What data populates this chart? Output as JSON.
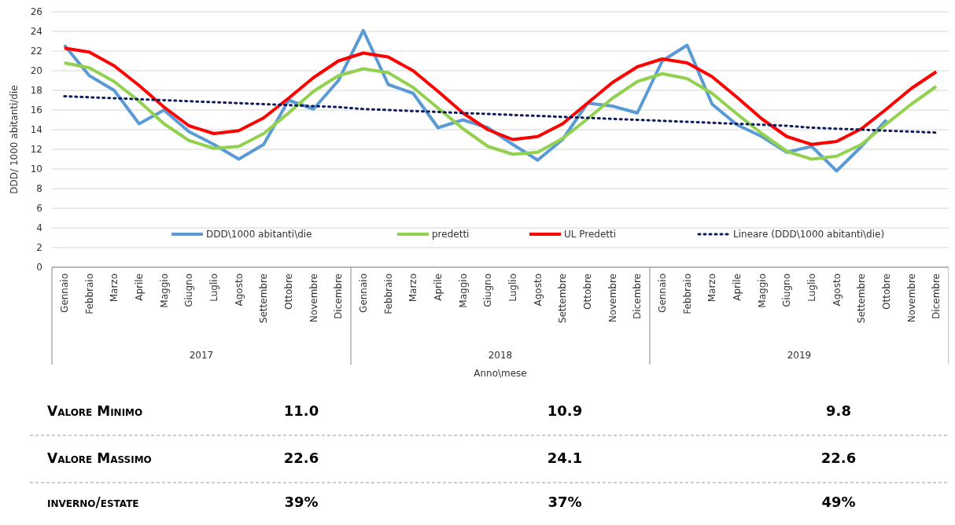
{
  "chart_data": {
    "type": "line",
    "ylabel": "DDD/ 1000 abitanti/die",
    "xlabel": "Anno\\mese",
    "categories": [
      "Gennaio",
      "Febbraio",
      "Marzo",
      "Aprile",
      "Maggio",
      "Giugno",
      "Luglio",
      "Agosto",
      "Settembre",
      "Ottobre",
      "Novembre",
      "Dicembre",
      "Gennaio",
      "Febbraio",
      "Marzo",
      "Aprile",
      "Maggio",
      "Giugno",
      "Luglio",
      "Agosto",
      "Settembre",
      "Ottobre",
      "Novembre",
      "Dicembre",
      "Gennaio",
      "Febbraio",
      "Marzo",
      "Aprile",
      "Maggio",
      "Giugno",
      "Luglio",
      "Agosto",
      "Settembre",
      "Ottobre",
      "Novembre",
      "Dicembre"
    ],
    "series": [
      {
        "name": "DDD\\1000 abitanti\\die",
        "color": "#5b9bd5",
        "values": [
          22.6,
          19.5,
          18.0,
          14.6,
          16.0,
          13.8,
          12.5,
          11.0,
          12.5,
          17.0,
          16.1,
          19.0,
          24.1,
          18.6,
          17.7,
          14.2,
          15.0,
          14.2,
          12.5,
          10.9,
          13.0,
          16.7,
          16.4,
          15.7,
          21.0,
          22.6,
          16.6,
          14.5,
          13.3,
          11.7,
          12.3,
          9.8,
          12.3,
          15.0,
          null,
          null
        ]
      },
      {
        "name": "predetti",
        "color": "#92d050",
        "values": [
          20.8,
          20.3,
          18.9,
          16.9,
          14.6,
          12.9,
          12.1,
          12.3,
          13.6,
          15.7,
          17.9,
          19.5,
          20.2,
          19.8,
          18.3,
          16.2,
          14.1,
          12.3,
          11.5,
          11.7,
          13.1,
          15.1,
          17.2,
          18.9,
          19.7,
          19.2,
          17.7,
          15.6,
          13.6,
          11.8,
          11.0,
          11.3,
          12.5,
          14.6,
          16.6,
          18.4
        ]
      },
      {
        "name": "UL Predetti",
        "color": "#ff0000",
        "values": [
          22.3,
          21.9,
          20.5,
          18.5,
          16.3,
          14.4,
          13.6,
          13.9,
          15.2,
          17.2,
          19.3,
          21.0,
          21.8,
          21.4,
          20.0,
          17.9,
          15.7,
          14.0,
          13.0,
          13.3,
          14.6,
          16.7,
          18.8,
          20.4,
          21.2,
          20.8,
          19.4,
          17.3,
          15.1,
          13.3,
          12.5,
          12.8,
          14.1,
          16.1,
          18.2,
          19.9
        ]
      },
      {
        "name": "Lineare (DDD\\1000 abitanti\\die)",
        "color": "#0d1b5e",
        "line_style": "dotted",
        "values": [
          17.4,
          17.3,
          17.2,
          17.1,
          17.0,
          16.9,
          16.8,
          16.7,
          16.6,
          16.5,
          16.4,
          16.3,
          16.1,
          16.0,
          15.9,
          15.8,
          15.7,
          15.6,
          15.5,
          15.4,
          15.3,
          15.2,
          15.1,
          15.0,
          14.9,
          14.8,
          14.7,
          14.6,
          14.5,
          14.4,
          14.2,
          14.1,
          14.0,
          13.9,
          13.8,
          13.7
        ]
      }
    ],
    "ylim": [
      0,
      26
    ],
    "yticks": [
      0,
      2,
      4,
      6,
      8,
      10,
      12,
      14,
      16,
      18,
      20,
      22,
      24,
      26
    ],
    "grid": "y",
    "legend": "bottom",
    "marker": "none",
    "line_style": "solid",
    "annotations": [
      "2017",
      "2018",
      "2019",
      "Valore Minimo",
      "11.0",
      "10.9",
      "9.8",
      "Valore Massimo",
      "22.6",
      "24.1",
      "22.6",
      "inverno/estate",
      "39%",
      "37%",
      "49%"
    ]
  }
}
